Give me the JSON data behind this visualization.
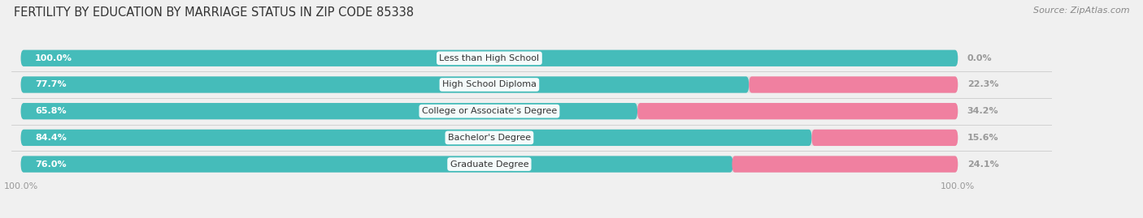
{
  "title": "FERTILITY BY EDUCATION BY MARRIAGE STATUS IN ZIP CODE 85338",
  "source": "Source: ZipAtlas.com",
  "categories": [
    "Less than High School",
    "High School Diploma",
    "College or Associate's Degree",
    "Bachelor's Degree",
    "Graduate Degree"
  ],
  "married": [
    100.0,
    77.7,
    65.8,
    84.4,
    76.0
  ],
  "unmarried": [
    0.0,
    22.3,
    34.2,
    15.6,
    24.1
  ],
  "married_color": "#45BCBA",
  "unmarried_color": "#F080A0",
  "bg_color": "#f0f0f0",
  "bar_bg_color": "#e0e0e0",
  "bar_height": 0.62,
  "title_fontsize": 10.5,
  "source_fontsize": 8,
  "label_fontsize": 8,
  "category_fontsize": 8,
  "tick_fontsize": 8,
  "legend_fontsize": 8.5
}
